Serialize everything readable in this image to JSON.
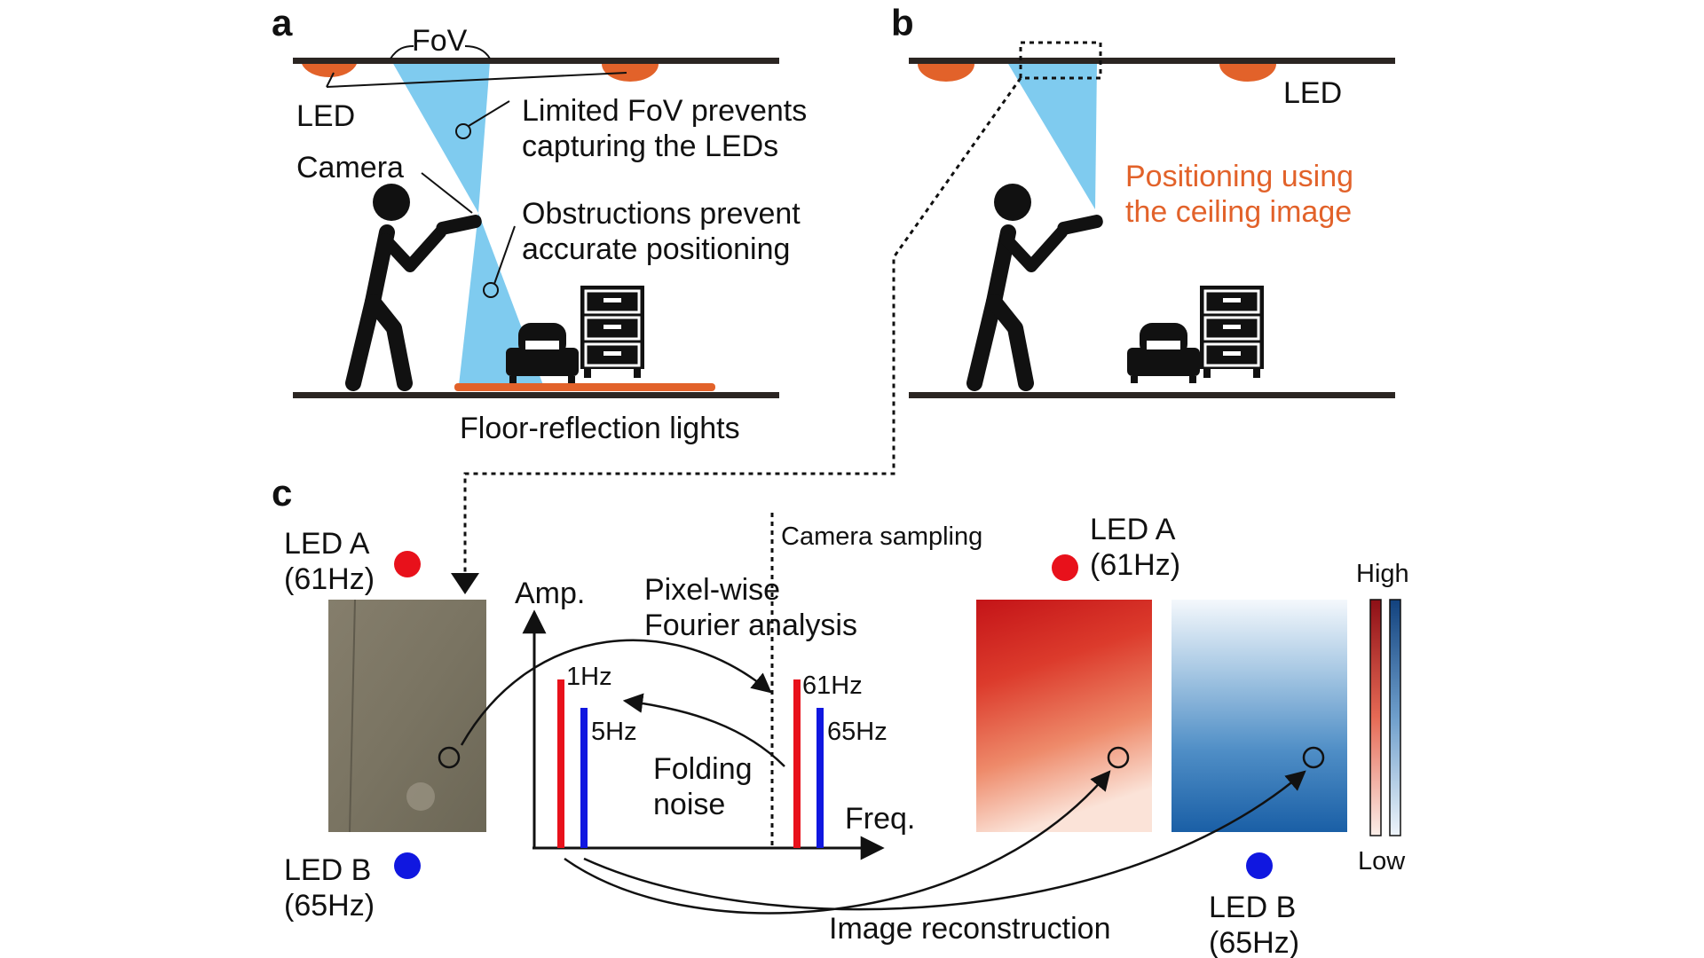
{
  "panel_a": {
    "letter": "a",
    "fov": "FoV",
    "led": "LED",
    "camera": "Camera",
    "note_fov_1": "Limited FoV prevents",
    "note_fov_2": "capturing the LEDs",
    "note_obs_1": "Obstructions prevent",
    "note_obs_2": "accurate positioning",
    "floor": "Floor-reflection lights"
  },
  "panel_b": {
    "letter": "b",
    "led": "LED",
    "note_1": "Positioning using",
    "note_2": "the ceiling image"
  },
  "panel_c": {
    "letter": "c",
    "led_a_name": "LED A",
    "led_a_freq": "(61Hz)",
    "led_b_name": "LED B",
    "led_b_freq": "(65Hz)",
    "amp_axis": "Amp.",
    "freq_axis": "Freq.",
    "camera_sampling": "Camera sampling",
    "pixel_wise_1": "Pixel-wise",
    "pixel_wise_2": "Fourier analysis",
    "bar_1hz": "1Hz",
    "bar_5hz": "5Hz",
    "bar_61hz": "61Hz",
    "bar_65hz": "65Hz",
    "folding_1": "Folding",
    "folding_2": "noise",
    "led_a2_name": "LED A",
    "led_a2_freq": "(61Hz)",
    "led_b2_name": "LED B",
    "led_b2_freq": "(65Hz)",
    "high": "High",
    "low": "Low",
    "image_reconstruction": "Image reconstruction"
  },
  "colors": {
    "led_orange": "#e2622a",
    "fov_blue": "#7fcbef",
    "led_a_red": "#e8111b",
    "led_b_blue": "#1017e0",
    "structure": "#2b2522"
  }
}
